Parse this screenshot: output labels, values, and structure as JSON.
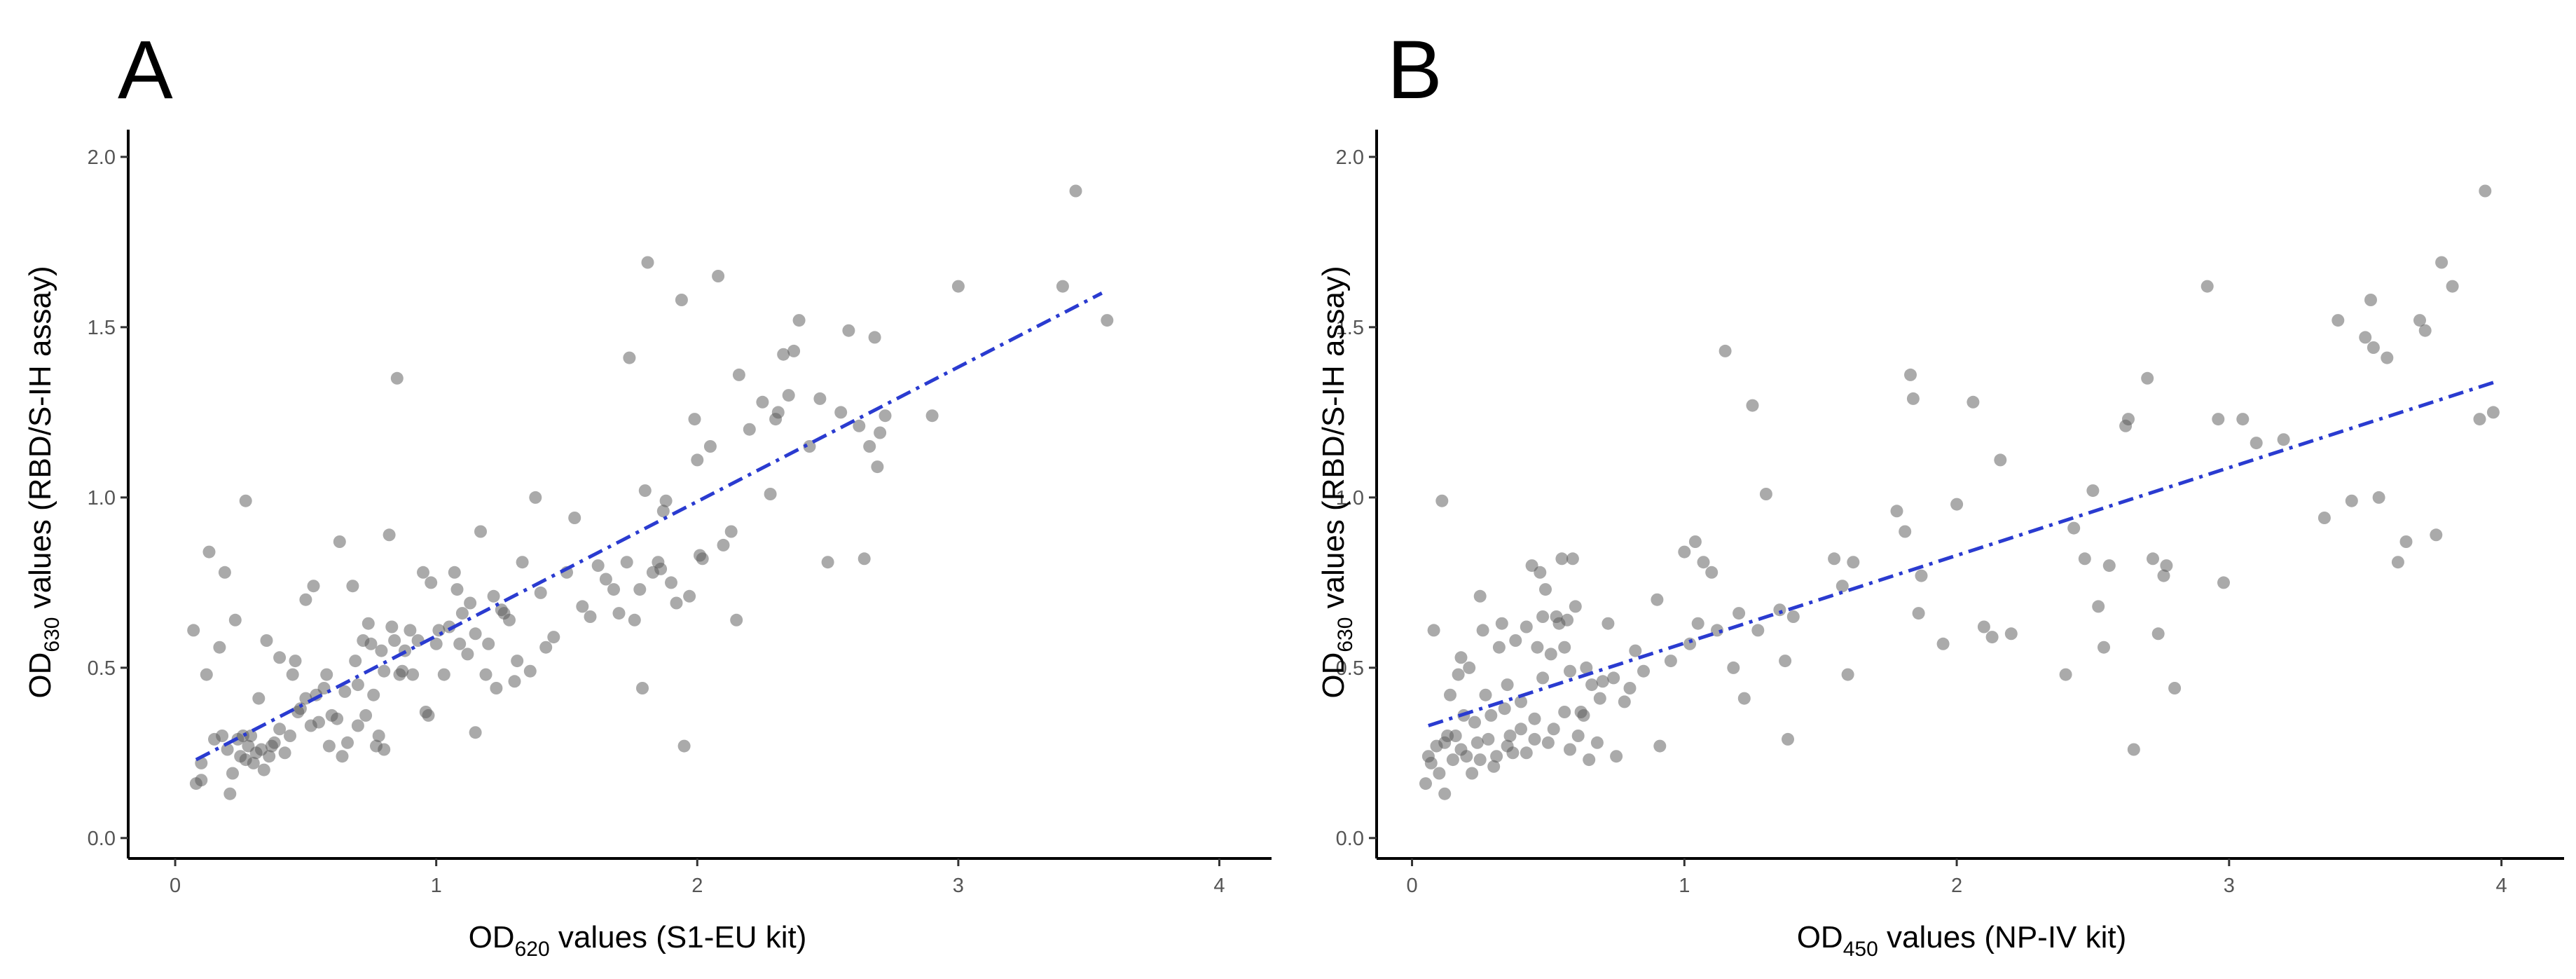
{
  "chart_data": [
    {
      "type": "scatter",
      "panel": "A",
      "xlabel_main": "OD",
      "xlabel_sub": "620",
      "xlabel_rest": " values (S1-EU kit)",
      "ylabel_main": "OD",
      "ylabel_sub": "630",
      "ylabel_rest": " values  (RBD/S-IH assay)",
      "xlim": [
        -0.18,
        4.2
      ],
      "ylim": [
        -0.06,
        2.08
      ],
      "x_ticks": [
        0,
        1,
        2,
        3,
        4
      ],
      "x_tick_labels": [
        "0",
        "1",
        "2",
        "3",
        "4"
      ],
      "y_ticks": [
        0.0,
        0.5,
        1.0,
        1.5,
        2.0
      ],
      "y_tick_labels": [
        "0.0",
        "0.5",
        "1.0",
        "1.5",
        "2.0"
      ],
      "grid": false,
      "fit_line": {
        "x": [
          0.08,
          3.55
        ],
        "y": [
          0.23,
          1.6
        ]
      },
      "points": [
        [
          0.07,
          0.61
        ],
        [
          0.08,
          0.16
        ],
        [
          0.1,
          0.22
        ],
        [
          0.1,
          0.17
        ],
        [
          0.12,
          0.48
        ],
        [
          0.13,
          0.84
        ],
        [
          0.15,
          0.29
        ],
        [
          0.17,
          0.56
        ],
        [
          0.18,
          0.3
        ],
        [
          0.19,
          0.78
        ],
        [
          0.2,
          0.26
        ],
        [
          0.21,
          0.13
        ],
        [
          0.22,
          0.19
        ],
        [
          0.23,
          0.64
        ],
        [
          0.24,
          0.29
        ],
        [
          0.25,
          0.24
        ],
        [
          0.26,
          0.3
        ],
        [
          0.27,
          0.99
        ],
        [
          0.27,
          0.23
        ],
        [
          0.28,
          0.27
        ],
        [
          0.29,
          0.3
        ],
        [
          0.3,
          0.22
        ],
        [
          0.31,
          0.25
        ],
        [
          0.32,
          0.41
        ],
        [
          0.33,
          0.26
        ],
        [
          0.34,
          0.2
        ],
        [
          0.35,
          0.58
        ],
        [
          0.36,
          0.24
        ],
        [
          0.37,
          0.27
        ],
        [
          0.38,
          0.28
        ],
        [
          0.4,
          0.53
        ],
        [
          0.4,
          0.32
        ],
        [
          0.42,
          0.25
        ],
        [
          0.44,
          0.3
        ],
        [
          0.45,
          0.48
        ],
        [
          0.46,
          0.52
        ],
        [
          0.47,
          0.37
        ],
        [
          0.48,
          0.38
        ],
        [
          0.5,
          0.41
        ],
        [
          0.5,
          0.7
        ],
        [
          0.52,
          0.33
        ],
        [
          0.53,
          0.74
        ],
        [
          0.54,
          0.42
        ],
        [
          0.55,
          0.34
        ],
        [
          0.57,
          0.44
        ],
        [
          0.58,
          0.48
        ],
        [
          0.59,
          0.27
        ],
        [
          0.6,
          0.36
        ],
        [
          0.62,
          0.35
        ],
        [
          0.63,
          0.87
        ],
        [
          0.64,
          0.24
        ],
        [
          0.65,
          0.43
        ],
        [
          0.66,
          0.28
        ],
        [
          0.68,
          0.74
        ],
        [
          0.69,
          0.52
        ],
        [
          0.7,
          0.45
        ],
        [
          0.7,
          0.33
        ],
        [
          0.72,
          0.58
        ],
        [
          0.73,
          0.36
        ],
        [
          0.74,
          0.63
        ],
        [
          0.75,
          0.57
        ],
        [
          0.76,
          0.42
        ],
        [
          0.77,
          0.27
        ],
        [
          0.78,
          0.3
        ],
        [
          0.79,
          0.55
        ],
        [
          0.8,
          0.49
        ],
        [
          0.8,
          0.26
        ],
        [
          0.82,
          0.89
        ],
        [
          0.83,
          0.62
        ],
        [
          0.84,
          0.58
        ],
        [
          0.85,
          1.35
        ],
        [
          0.86,
          0.48
        ],
        [
          0.87,
          0.49
        ],
        [
          0.88,
          0.55
        ],
        [
          0.9,
          0.61
        ],
        [
          0.91,
          0.48
        ],
        [
          0.93,
          0.58
        ],
        [
          0.95,
          0.78
        ],
        [
          0.96,
          0.37
        ],
        [
          0.97,
          0.36
        ],
        [
          0.98,
          0.75
        ],
        [
          1.0,
          0.57
        ],
        [
          1.01,
          0.61
        ],
        [
          1.03,
          0.48
        ],
        [
          1.05,
          0.62
        ],
        [
          1.07,
          0.78
        ],
        [
          1.08,
          0.73
        ],
        [
          1.09,
          0.57
        ],
        [
          1.1,
          0.66
        ],
        [
          1.12,
          0.54
        ],
        [
          1.13,
          0.69
        ],
        [
          1.15,
          0.31
        ],
        [
          1.15,
          0.6
        ],
        [
          1.17,
          0.9
        ],
        [
          1.19,
          0.48
        ],
        [
          1.2,
          0.57
        ],
        [
          1.22,
          0.71
        ],
        [
          1.23,
          0.44
        ],
        [
          1.25,
          0.67
        ],
        [
          1.26,
          0.66
        ],
        [
          1.28,
          0.64
        ],
        [
          1.3,
          0.46
        ],
        [
          1.31,
          0.52
        ],
        [
          1.33,
          0.81
        ],
        [
          1.36,
          0.49
        ],
        [
          1.38,
          1.0
        ],
        [
          1.4,
          0.72
        ],
        [
          1.42,
          0.56
        ],
        [
          1.45,
          0.59
        ],
        [
          1.5,
          0.78
        ],
        [
          1.53,
          0.94
        ],
        [
          1.56,
          0.68
        ],
        [
          1.59,
          0.65
        ],
        [
          1.62,
          0.8
        ],
        [
          1.65,
          0.76
        ],
        [
          1.68,
          0.73
        ],
        [
          1.7,
          0.66
        ],
        [
          1.73,
          0.81
        ],
        [
          1.74,
          1.41
        ],
        [
          1.76,
          0.64
        ],
        [
          1.78,
          0.73
        ],
        [
          1.79,
          0.44
        ],
        [
          1.8,
          1.02
        ],
        [
          1.81,
          1.69
        ],
        [
          1.83,
          0.78
        ],
        [
          1.85,
          0.81
        ],
        [
          1.86,
          0.79
        ],
        [
          1.87,
          0.96
        ],
        [
          1.88,
          0.99
        ],
        [
          1.9,
          0.75
        ],
        [
          1.92,
          0.69
        ],
        [
          1.94,
          1.58
        ],
        [
          1.95,
          0.27
        ],
        [
          1.97,
          0.71
        ],
        [
          1.99,
          1.23
        ],
        [
          2.0,
          1.11
        ],
        [
          2.01,
          0.83
        ],
        [
          2.02,
          0.82
        ],
        [
          2.05,
          1.15
        ],
        [
          2.08,
          1.65
        ],
        [
          2.1,
          0.86
        ],
        [
          2.13,
          0.9
        ],
        [
          2.15,
          0.64
        ],
        [
          2.16,
          1.36
        ],
        [
          2.2,
          1.2
        ],
        [
          2.25,
          1.28
        ],
        [
          2.28,
          1.01
        ],
        [
          2.3,
          1.23
        ],
        [
          2.31,
          1.25
        ],
        [
          2.33,
          1.42
        ],
        [
          2.35,
          1.3
        ],
        [
          2.37,
          1.43
        ],
        [
          2.39,
          1.52
        ],
        [
          2.43,
          1.15
        ],
        [
          2.47,
          1.29
        ],
        [
          2.5,
          0.81
        ],
        [
          2.55,
          1.25
        ],
        [
          2.58,
          1.49
        ],
        [
          2.62,
          1.21
        ],
        [
          2.64,
          0.82
        ],
        [
          2.66,
          1.15
        ],
        [
          2.68,
          1.47
        ],
        [
          2.69,
          1.09
        ],
        [
          2.7,
          1.19
        ],
        [
          2.72,
          1.24
        ],
        [
          2.9,
          1.24
        ],
        [
          3.0,
          1.62
        ],
        [
          3.4,
          1.62
        ],
        [
          3.45,
          1.9
        ],
        [
          3.57,
          1.52
        ]
      ]
    },
    {
      "type": "scatter",
      "panel": "B",
      "xlabel_main": "OD",
      "xlabel_sub": "450",
      "xlabel_rest": " values (NP-IV kit)",
      "ylabel_main": "OD",
      "ylabel_sub": "630",
      "ylabel_rest": " values  (RBD/S-IH assay)",
      "xlim": [
        -0.13,
        4.23
      ],
      "ylim": [
        -0.06,
        2.08
      ],
      "x_ticks": [
        0,
        1,
        2,
        3,
        4
      ],
      "x_tick_labels": [
        "0",
        "1",
        "2",
        "3",
        "4"
      ],
      "y_ticks": [
        0.0,
        0.5,
        1.0,
        1.5,
        2.0
      ],
      "y_tick_labels": [
        "0.0",
        "0.5",
        "1.0",
        "1.5",
        "2.0"
      ],
      "grid": false,
      "fit_line": {
        "x": [
          0.06,
          3.98
        ],
        "y": [
          0.33,
          1.34
        ]
      },
      "points": [
        [
          0.05,
          0.16
        ],
        [
          0.06,
          0.24
        ],
        [
          0.07,
          0.22
        ],
        [
          0.08,
          0.61
        ],
        [
          0.09,
          0.27
        ],
        [
          0.1,
          0.19
        ],
        [
          0.11,
          0.99
        ],
        [
          0.12,
          0.13
        ],
        [
          0.12,
          0.28
        ],
        [
          0.13,
          0.3
        ],
        [
          0.14,
          0.42
        ],
        [
          0.15,
          0.23
        ],
        [
          0.16,
          0.3
        ],
        [
          0.17,
          0.48
        ],
        [
          0.18,
          0.53
        ],
        [
          0.18,
          0.26
        ],
        [
          0.19,
          0.36
        ],
        [
          0.2,
          0.24
        ],
        [
          0.21,
          0.5
        ],
        [
          0.22,
          0.19
        ],
        [
          0.23,
          0.34
        ],
        [
          0.24,
          0.28
        ],
        [
          0.25,
          0.71
        ],
        [
          0.25,
          0.23
        ],
        [
          0.26,
          0.61
        ],
        [
          0.27,
          0.42
        ],
        [
          0.28,
          0.29
        ],
        [
          0.29,
          0.36
        ],
        [
          0.3,
          0.21
        ],
        [
          0.31,
          0.24
        ],
        [
          0.32,
          0.56
        ],
        [
          0.33,
          0.63
        ],
        [
          0.34,
          0.38
        ],
        [
          0.35,
          0.27
        ],
        [
          0.35,
          0.45
        ],
        [
          0.36,
          0.3
        ],
        [
          0.37,
          0.25
        ],
        [
          0.38,
          0.58
        ],
        [
          0.4,
          0.4
        ],
        [
          0.4,
          0.32
        ],
        [
          0.42,
          0.62
        ],
        [
          0.42,
          0.25
        ],
        [
          0.44,
          0.8
        ],
        [
          0.45,
          0.35
        ],
        [
          0.45,
          0.29
        ],
        [
          0.46,
          0.56
        ],
        [
          0.47,
          0.78
        ],
        [
          0.48,
          0.65
        ],
        [
          0.48,
          0.47
        ],
        [
          0.49,
          0.73
        ],
        [
          0.5,
          0.28
        ],
        [
          0.51,
          0.54
        ],
        [
          0.52,
          0.32
        ],
        [
          0.53,
          0.65
        ],
        [
          0.54,
          0.63
        ],
        [
          0.55,
          0.82
        ],
        [
          0.56,
          0.37
        ],
        [
          0.56,
          0.56
        ],
        [
          0.57,
          0.64
        ],
        [
          0.58,
          0.26
        ],
        [
          0.58,
          0.49
        ],
        [
          0.59,
          0.82
        ],
        [
          0.6,
          0.68
        ],
        [
          0.61,
          0.3
        ],
        [
          0.62,
          0.37
        ],
        [
          0.63,
          0.36
        ],
        [
          0.64,
          0.5
        ],
        [
          0.65,
          0.23
        ],
        [
          0.66,
          0.45
        ],
        [
          0.68,
          0.28
        ],
        [
          0.69,
          0.41
        ],
        [
          0.7,
          0.46
        ],
        [
          0.72,
          0.63
        ],
        [
          0.74,
          0.47
        ],
        [
          0.75,
          0.24
        ],
        [
          0.78,
          0.4
        ],
        [
          0.8,
          0.44
        ],
        [
          0.82,
          0.55
        ],
        [
          0.85,
          0.49
        ],
        [
          0.9,
          0.7
        ],
        [
          0.91,
          0.27
        ],
        [
          0.95,
          0.52
        ],
        [
          1.0,
          0.84
        ],
        [
          1.02,
          0.57
        ],
        [
          1.04,
          0.87
        ],
        [
          1.05,
          0.63
        ],
        [
          1.07,
          0.81
        ],
        [
          1.1,
          0.78
        ],
        [
          1.12,
          0.61
        ],
        [
          1.15,
          1.43
        ],
        [
          1.18,
          0.5
        ],
        [
          1.2,
          0.66
        ],
        [
          1.22,
          0.41
        ],
        [
          1.25,
          1.27
        ],
        [
          1.27,
          0.61
        ],
        [
          1.3,
          1.01
        ],
        [
          1.35,
          0.67
        ],
        [
          1.37,
          0.52
        ],
        [
          1.38,
          0.29
        ],
        [
          1.4,
          0.65
        ],
        [
          1.55,
          0.82
        ],
        [
          1.58,
          0.74
        ],
        [
          1.6,
          0.48
        ],
        [
          1.62,
          0.81
        ],
        [
          1.78,
          0.96
        ],
        [
          1.81,
          0.9
        ],
        [
          1.83,
          1.36
        ],
        [
          1.84,
          1.29
        ],
        [
          1.86,
          0.66
        ],
        [
          1.87,
          0.77
        ],
        [
          1.95,
          0.57
        ],
        [
          2.0,
          0.98
        ],
        [
          2.06,
          1.28
        ],
        [
          2.1,
          0.62
        ],
        [
          2.13,
          0.59
        ],
        [
          2.16,
          1.11
        ],
        [
          2.2,
          0.6
        ],
        [
          2.4,
          0.48
        ],
        [
          2.43,
          0.91
        ],
        [
          2.47,
          0.82
        ],
        [
          2.5,
          1.02
        ],
        [
          2.52,
          0.68
        ],
        [
          2.54,
          0.56
        ],
        [
          2.56,
          0.8
        ],
        [
          2.62,
          1.21
        ],
        [
          2.63,
          1.23
        ],
        [
          2.65,
          0.26
        ],
        [
          2.7,
          1.35
        ],
        [
          2.72,
          0.82
        ],
        [
          2.74,
          0.6
        ],
        [
          2.76,
          0.77
        ],
        [
          2.77,
          0.8
        ],
        [
          2.8,
          0.44
        ],
        [
          2.92,
          1.62
        ],
        [
          2.96,
          1.23
        ],
        [
          2.98,
          0.75
        ],
        [
          3.05,
          1.23
        ],
        [
          3.1,
          1.16
        ],
        [
          3.2,
          1.17
        ],
        [
          3.35,
          0.94
        ],
        [
          3.4,
          1.52
        ],
        [
          3.45,
          0.99
        ],
        [
          3.5,
          1.47
        ],
        [
          3.52,
          1.58
        ],
        [
          3.53,
          1.44
        ],
        [
          3.55,
          1.0
        ],
        [
          3.58,
          1.41
        ],
        [
          3.62,
          0.81
        ],
        [
          3.65,
          0.87
        ],
        [
          3.7,
          1.52
        ],
        [
          3.72,
          1.49
        ],
        [
          3.76,
          0.89
        ],
        [
          3.78,
          1.69
        ],
        [
          3.82,
          1.62
        ],
        [
          3.92,
          1.23
        ],
        [
          3.94,
          1.9
        ],
        [
          3.97,
          1.25
        ]
      ]
    }
  ]
}
